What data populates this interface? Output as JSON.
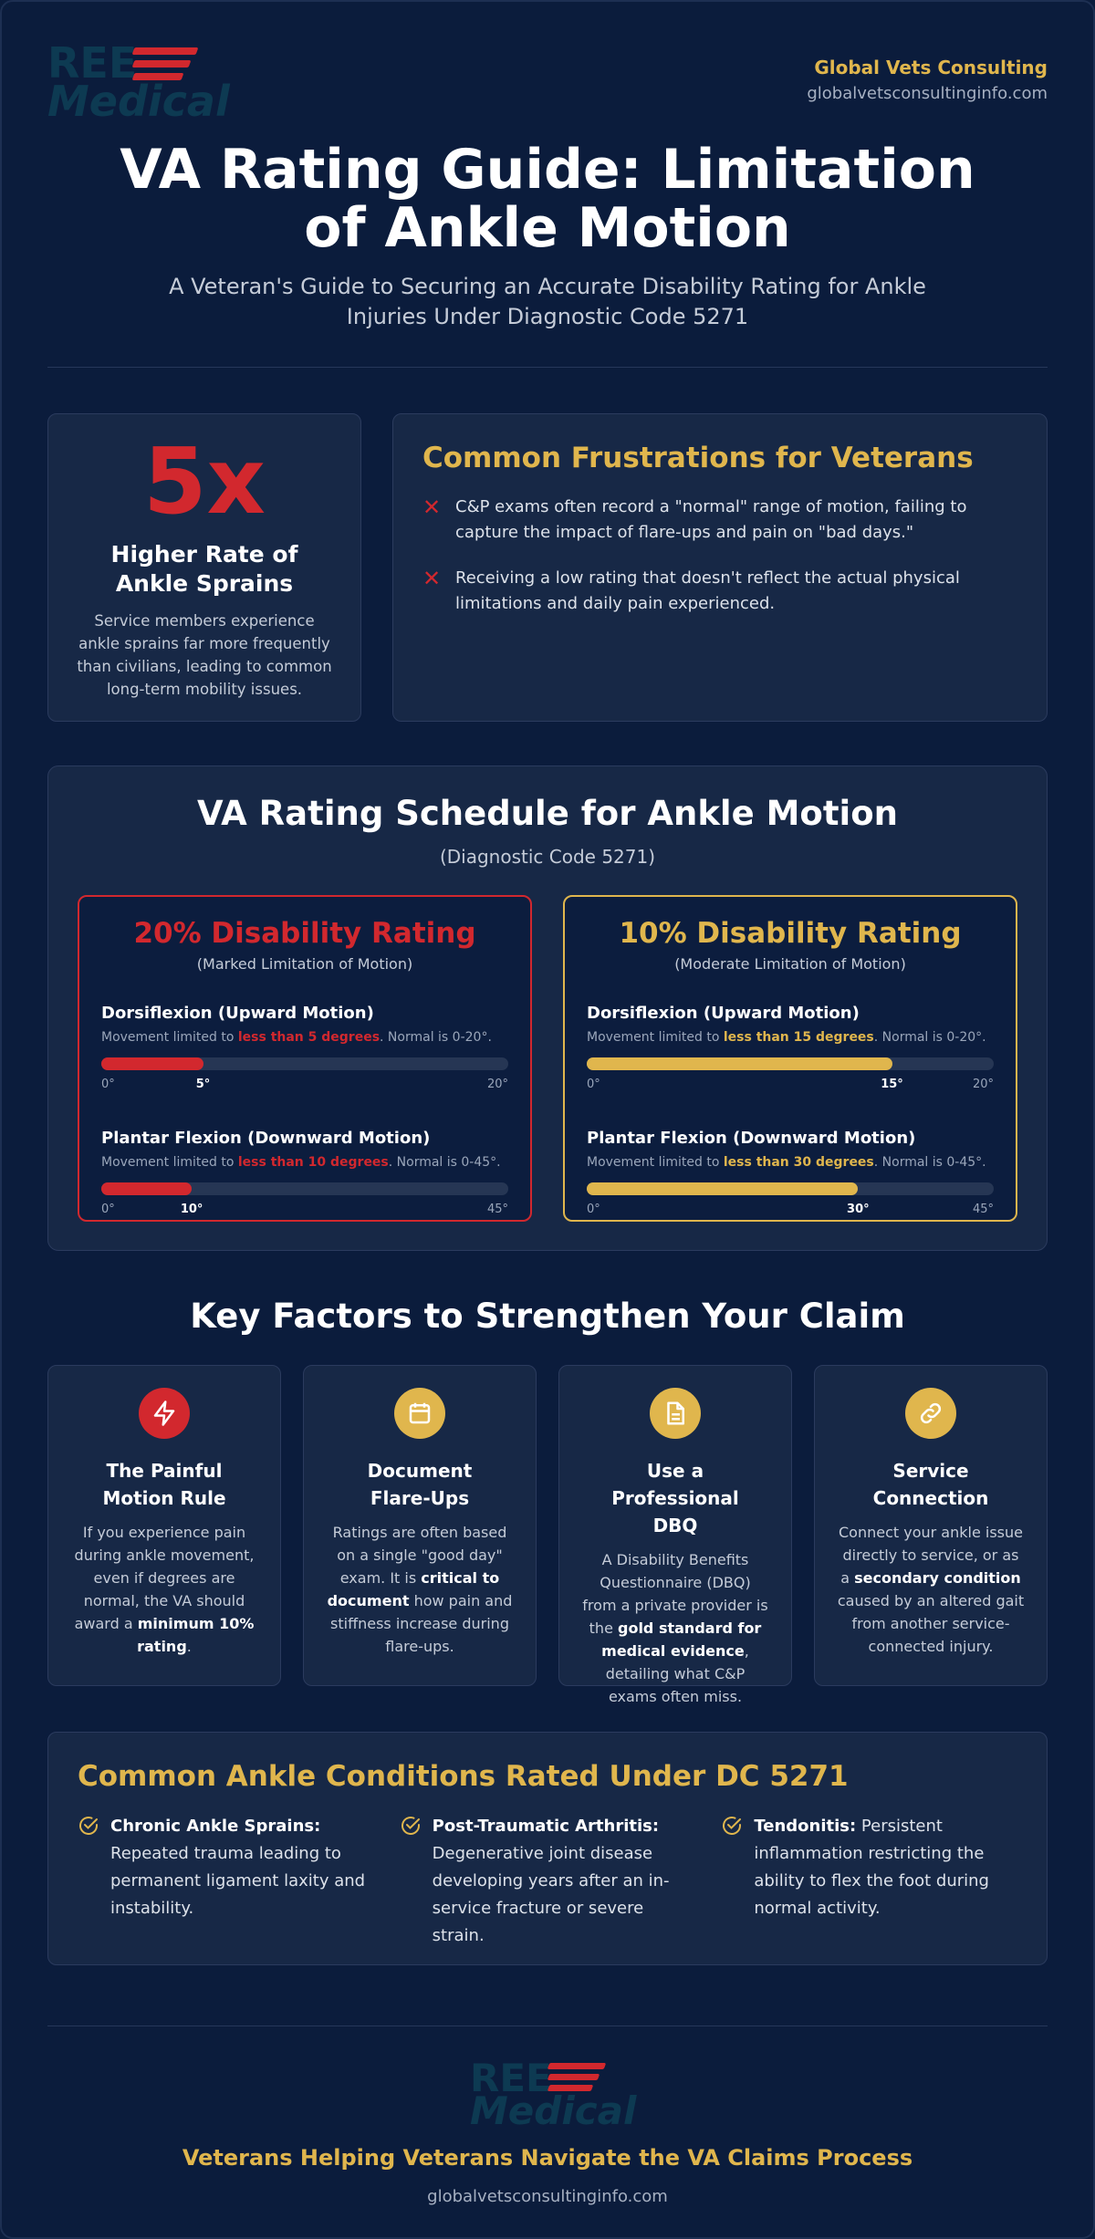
{
  "header": {
    "logo_line1": "REE",
    "logo_line2": "Medical",
    "brand_name": "Global Vets Consulting",
    "brand_url": "globalvetsconsultinginfo.com",
    "title": "VA Rating Guide: Limitation of Ankle Motion",
    "subtitle": "A Veteran's Guide to Securing an Accurate Disability Rating for Ankle Injuries Under Diagnostic Code 5271"
  },
  "stat": {
    "big": "5x",
    "heading": "Higher Rate of Ankle Sprains",
    "desc": "Service members experience ankle sprains far more frequently than civilians, leading to common long-term mobility issues."
  },
  "frustrations": {
    "title": "Common Frustrations for Veterans",
    "items": [
      "C&P exams often record a \"normal\" range of motion, failing to capture the impact of flare-ups and pain on \"bad days.\"",
      "Receiving a low rating that doesn't reflect the actual physical limitations and daily pain experienced."
    ]
  },
  "schedule": {
    "title": "VA Rating Schedule for Ankle Motion",
    "subtitle": "(Diagnostic Code 5271)",
    "ratings": [
      {
        "title": "20% Disability Rating",
        "subtitle": "(Marked Limitation of Motion)",
        "motions": [
          {
            "name": "Dorsiflexion (Upward Motion)",
            "desc_pre": "Movement limited to ",
            "desc_hl": "less than 5 degrees",
            "desc_post": ". Normal is 0-20°.",
            "min": 0,
            "max": 20,
            "value": 5,
            "min_label": "0°",
            "max_label": "20°",
            "value_label": "5°"
          },
          {
            "name": "Plantar Flexion (Downward Motion)",
            "desc_pre": "Movement limited to ",
            "desc_hl": "less than 10 degrees",
            "desc_post": ". Normal is 0-45°.",
            "min": 0,
            "max": 45,
            "value": 10,
            "min_label": "0°",
            "max_label": "45°",
            "value_label": "10°"
          }
        ]
      },
      {
        "title": "10% Disability Rating",
        "subtitle": "(Moderate Limitation of Motion)",
        "motions": [
          {
            "name": "Dorsiflexion (Upward Motion)",
            "desc_pre": "Movement limited to ",
            "desc_hl": "less than 15 degrees",
            "desc_post": ". Normal is 0-20°.",
            "min": 0,
            "max": 20,
            "value": 15,
            "min_label": "0°",
            "max_label": "20°",
            "value_label": "15°"
          },
          {
            "name": "Plantar Flexion (Downward Motion)",
            "desc_pre": "Movement limited to ",
            "desc_hl": "less than 30 degrees",
            "desc_post": ". Normal is 0-45°.",
            "min": 0,
            "max": 45,
            "value": 30,
            "min_label": "0°",
            "max_label": "45°",
            "value_label": "30°"
          }
        ]
      }
    ]
  },
  "key_factors": {
    "title": "Key Factors to Strengthen Your Claim",
    "items": [
      {
        "icon": "lightning-icon",
        "title": "The Painful Motion Rule",
        "d1": "If you experience pain during ankle movement, even if degrees are normal, the VA should award a ",
        "b1": "minimum 10% rating",
        "d2": "."
      },
      {
        "icon": "calendar-icon",
        "title": "Document Flare-Ups",
        "d1": "Ratings are often based on a single \"good day\" exam. It is ",
        "b1": "critical to document",
        "d2": " how pain and stiffness increase during flare-ups."
      },
      {
        "icon": "document-icon",
        "title": "Use a Professional DBQ",
        "d1": "A Disability Benefits Questionnaire (DBQ) from a private provider is the ",
        "b1": "gold standard for medical evidence",
        "d2": ", detailing what C&P exams often miss."
      },
      {
        "icon": "link-icon",
        "title": "Service Connection",
        "d1": "Connect your ankle issue directly to service, or as a ",
        "b1": "secondary condition",
        "d2": " caused by an altered gait from another service-connected injury."
      }
    ]
  },
  "conditions": {
    "title": "Common Ankle Conditions Rated Under DC 5271",
    "items": [
      {
        "name": "Chronic Ankle Sprains:",
        "desc": " Repeated trauma leading to permanent ligament laxity and instability."
      },
      {
        "name": "Post-Traumatic Arthritis:",
        "desc": " Degenerative joint disease developing years after an in-service fracture or severe strain."
      },
      {
        "name": "Tendonitis:",
        "desc": " Persistent inflammation restricting the ability to flex the foot during normal activity."
      }
    ]
  },
  "footer": {
    "logo_line1": "REE",
    "logo_line2": "Medical",
    "tagline": "Veterans Helping Veterans Navigate the VA Claims Process",
    "url": "globalvetsconsultinginfo.com"
  },
  "colors": {
    "red": "#d2282e",
    "gold": "#e0b64d",
    "navy": "#0b1c3c"
  }
}
